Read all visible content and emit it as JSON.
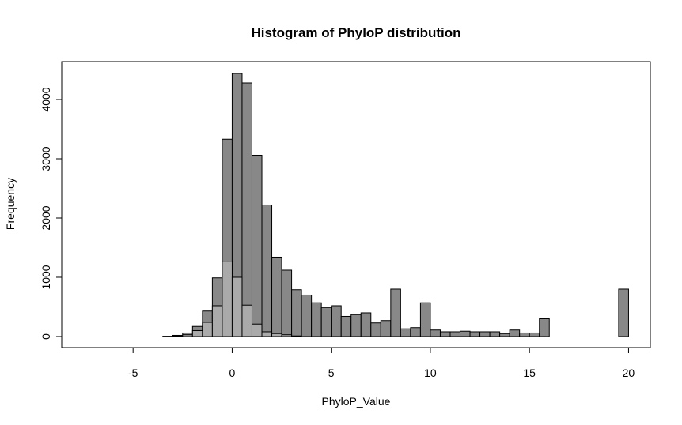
{
  "chart_data": {
    "type": "histogram",
    "title": "Histogram of PhyloP distribution",
    "x_label": "PhyloP_Value",
    "y_label": "Frequency",
    "bins": [
      -7.5,
      -7,
      -6.5,
      -6,
      -5.5,
      -5,
      -4.5,
      -4,
      -3.5,
      -3,
      -2.5,
      -2,
      -1.5,
      -1,
      -0.5,
      0,
      0.5,
      1,
      1.5,
      2,
      2.5,
      3,
      3.5,
      4,
      4.5,
      5,
      5.5,
      6,
      6.5,
      7,
      7.5,
      8,
      8.5,
      9,
      9.5,
      10,
      10.5,
      11,
      11.5,
      12,
      12.5,
      13,
      13.5,
      14,
      14.5,
      15,
      15.5,
      16,
      16.5,
      17,
      17.5,
      18,
      18.5,
      19,
      19.5,
      20
    ],
    "series": [
      {
        "color": "#888888",
        "values": [
          0,
          0,
          0,
          0,
          0,
          0,
          0,
          0,
          5,
          20,
          60,
          170,
          430,
          990,
          3330,
          4440,
          4280,
          3060,
          2220,
          1340,
          1120,
          790,
          700,
          570,
          490,
          520,
          340,
          370,
          400,
          230,
          270,
          800,
          130,
          150,
          570,
          110,
          80,
          80,
          90,
          80,
          80,
          80,
          50,
          110,
          60,
          60,
          300,
          0,
          0,
          0,
          0,
          0,
          0,
          0,
          800
        ]
      },
      {
        "color": "#aaaaaa",
        "values": [
          0,
          0,
          0,
          0,
          0,
          0,
          0,
          0,
          0,
          10,
          30,
          100,
          240,
          520,
          1270,
          1000,
          530,
          210,
          80,
          50,
          30,
          10,
          0,
          0,
          0,
          0,
          0,
          0,
          0,
          0,
          0,
          0,
          0,
          0,
          0,
          0,
          0,
          0,
          0,
          0,
          0,
          0,
          0,
          0,
          0,
          0,
          0,
          0,
          0,
          0,
          0,
          0,
          0,
          0,
          0
        ]
      }
    ],
    "xlim": [
      -8.6,
      21.1
    ],
    "ylim": [
      -187,
      4640
    ],
    "xticks": [
      -5,
      0,
      5,
      10,
      15,
      20
    ],
    "yticks": [
      0,
      1000,
      2000,
      3000,
      4000
    ]
  }
}
